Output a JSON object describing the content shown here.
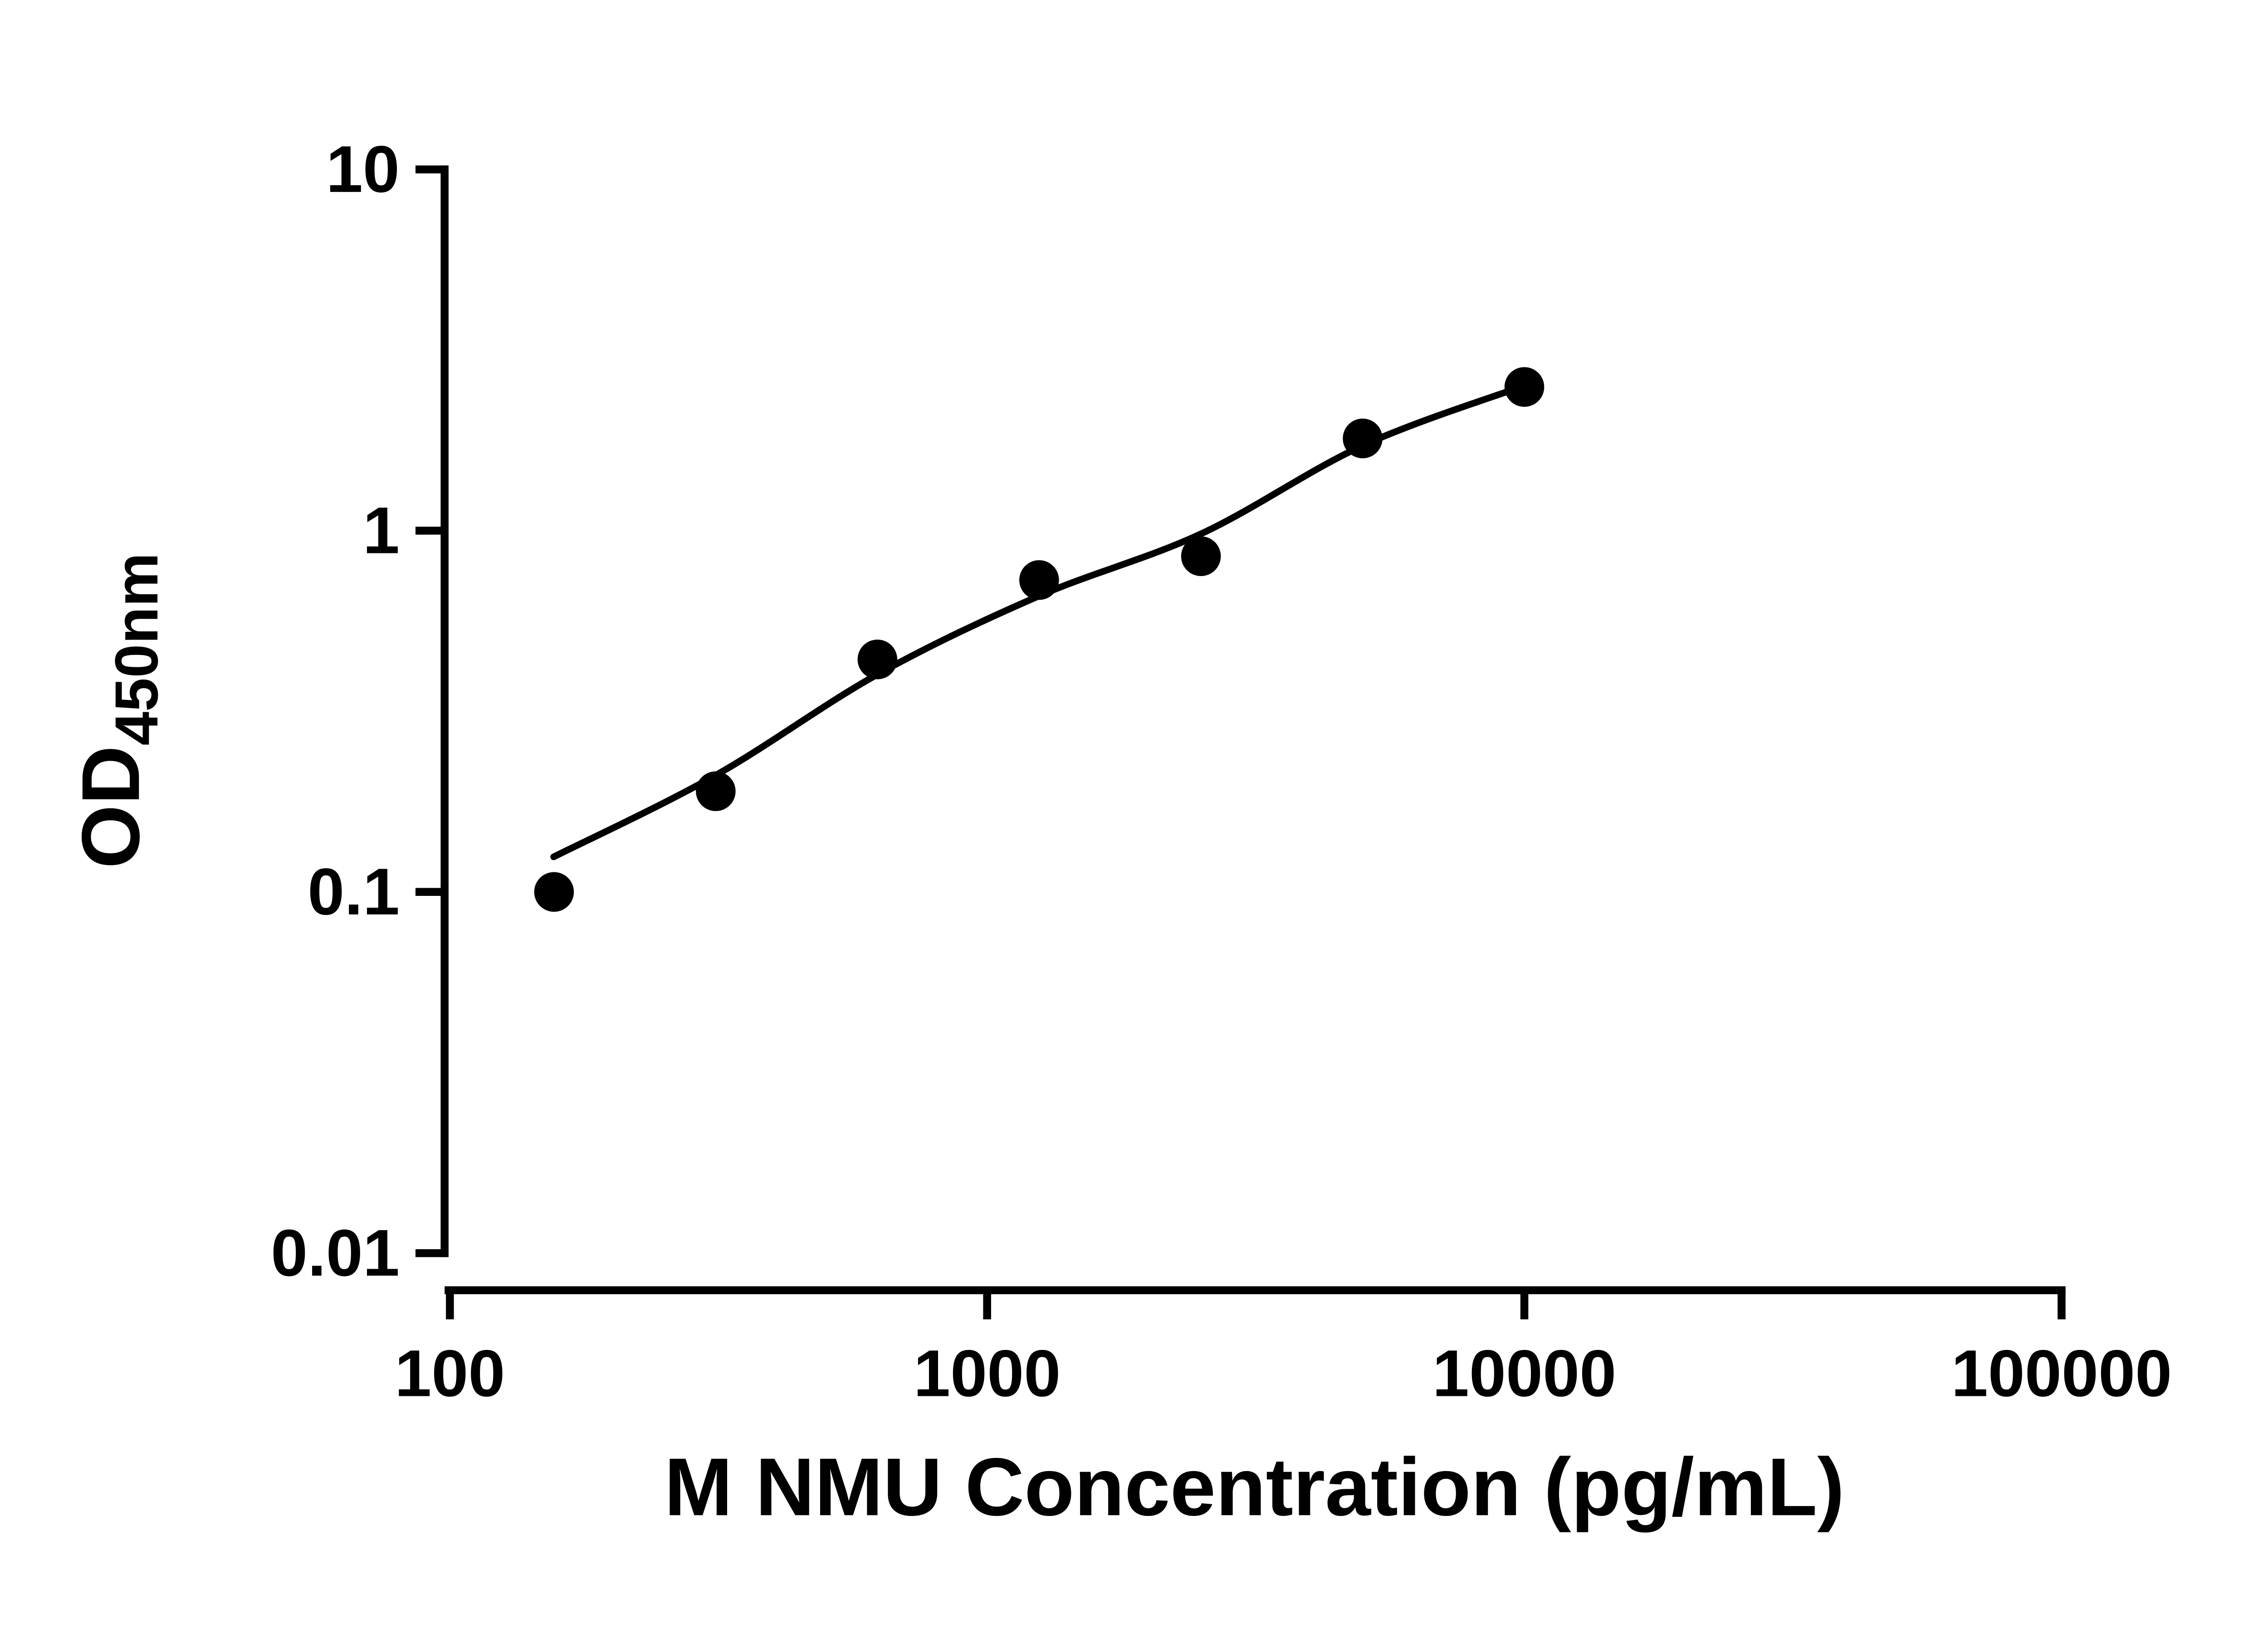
{
  "chart_data": {
    "type": "scatter",
    "title": "",
    "xlabel": "M NMU Concentration (pg/mL)",
    "ylabel": "OD",
    "ylabel_subscript": "450nm",
    "x_scale": "log10",
    "y_scale": "log10",
    "xlim": [
      100,
      100000
    ],
    "ylim": [
      0.01,
      10
    ],
    "x_ticks": [
      100,
      1000,
      10000,
      100000
    ],
    "x_tick_labels": [
      "100",
      "1000",
      "10000",
      "100000"
    ],
    "y_ticks": [
      0.01,
      0.1,
      1,
      10
    ],
    "y_tick_labels": [
      "0.01",
      "0.1",
      "1",
      "10"
    ],
    "grid": false,
    "legend": "none",
    "axis_color": "#000000",
    "marker_color": "#000000",
    "line_color": "#000000",
    "series": [
      {
        "name": "standard-points",
        "type": "scatter",
        "marker": "filled-circle",
        "color": "#000000",
        "x": [
          156.25,
          312.5,
          625,
          1250,
          2500,
          5000,
          10000
        ],
        "y": [
          0.1,
          0.19,
          0.44,
          0.73,
          0.85,
          1.8,
          2.5
        ]
      },
      {
        "name": "fit-curve",
        "type": "line",
        "color": "#000000",
        "x": [
          156,
          312,
          625,
          1250,
          2500,
          5000,
          10000
        ],
        "y": [
          0.125,
          0.21,
          0.4,
          0.66,
          0.98,
          1.72,
          2.52
        ]
      }
    ]
  }
}
